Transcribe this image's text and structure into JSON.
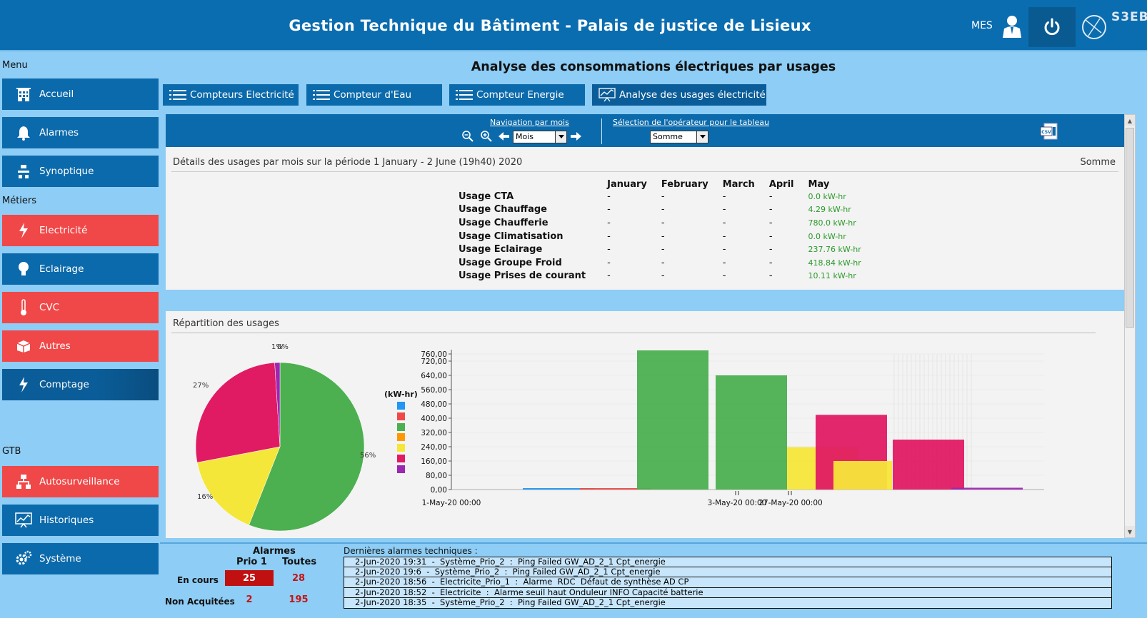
{
  "header": {
    "title": "Gestion Technique du Bâtiment - Palais de justice de Lisieux",
    "mes_label": "MES",
    "logo_text": "S3EB"
  },
  "sidebar": {
    "menu_label": "Menu",
    "metiers_label": "Métiers",
    "gtb_label": "GTB",
    "items": [
      {
        "label": "Accueil",
        "icon": "building-icon",
        "color": "#0b6aab"
      },
      {
        "label": "Alarmes",
        "icon": "bell-icon",
        "color": "#0b6aab"
      },
      {
        "label": "Synoptique",
        "icon": "synoptic-icon",
        "color": "#0b6aab"
      },
      {
        "label": "Electricité",
        "icon": "lightning-icon",
        "color": "#f04848"
      },
      {
        "label": "Eclairage",
        "icon": "bulb-icon",
        "color": "#0b6aab"
      },
      {
        "label": "CVC",
        "icon": "thermometer-icon",
        "color": "#f04848"
      },
      {
        "label": "Autres",
        "icon": "box-icon",
        "color": "#f04848"
      },
      {
        "label": "Comptage",
        "icon": "lightning-icon",
        "color": "#0a5d99"
      },
      {
        "label": "Autosurveillance",
        "icon": "network-icon",
        "color": "#f04848"
      },
      {
        "label": "Historiques",
        "icon": "chart-icon",
        "color": "#0b6aab"
      },
      {
        "label": "Système",
        "icon": "gears-icon",
        "color": "#0b6aab"
      }
    ]
  },
  "main": {
    "page_title": "Analyse des consommations électriques par usages",
    "tabs": [
      {
        "label": "Compteurs Electricité"
      },
      {
        "label": "Compteur d'Eau"
      },
      {
        "label": "Compteur Energie"
      },
      {
        "label": "Analyse des usages électricité"
      }
    ],
    "nav": {
      "month_caption": "Navigation par mois",
      "month_value": "Mois",
      "operator_caption": "Sélection de l'opérateur pour le tableau",
      "operator_value": "Somme",
      "csv_label": "CSV"
    },
    "details": {
      "title": "Détails des usages par mois sur la période 1 January - 2 June (19h40) 2020",
      "operator": "Somme",
      "columns": [
        "January",
        "February",
        "March",
        "April",
        "May"
      ],
      "rows": [
        {
          "name": "Usage CTA",
          "values": [
            "-",
            "-",
            "-",
            "-",
            "0.0 kW-hr"
          ]
        },
        {
          "name": "Usage Chauffage",
          "values": [
            "-",
            "-",
            "-",
            "-",
            "4.29 kW-hr"
          ]
        },
        {
          "name": "Usage Chaufferie",
          "values": [
            "-",
            "-",
            "-",
            "-",
            "780.0 kW-hr"
          ]
        },
        {
          "name": "Usage Climatisation",
          "values": [
            "-",
            "-",
            "-",
            "-",
            "0.0 kW-hr"
          ]
        },
        {
          "name": "Usage Eclairage",
          "values": [
            "-",
            "-",
            "-",
            "-",
            "237.76 kW-hr"
          ]
        },
        {
          "name": "Usage Groupe Froid",
          "values": [
            "-",
            "-",
            "-",
            "-",
            "418.84 kW-hr"
          ]
        },
        {
          "name": "Usage Prises de courant",
          "values": [
            "-",
            "-",
            "-",
            "-",
            "10.11 kW-hr"
          ]
        }
      ]
    },
    "chart_section_title": "Répartition des usages"
  },
  "chart_data": [
    {
      "type": "pie",
      "title": "",
      "slices": [
        {
          "color": "#4caf50",
          "value": 56,
          "label": "56%"
        },
        {
          "color": "#f5e63a",
          "value": 16,
          "label": "16%"
        },
        {
          "color": "#e01b64",
          "value": 27,
          "label": "27%"
        },
        {
          "color": "#9c27b0",
          "value": 1,
          "label": "1%"
        },
        {
          "color": "#f04848",
          "value": 0,
          "label": "0%"
        }
      ]
    },
    {
      "type": "bar",
      "title": "",
      "ylabel": "(kW-hr)",
      "ylim": [
        0,
        760
      ],
      "yticks": [
        "0,00",
        "80,00",
        "160,00",
        "240,00",
        "320,00",
        "400,00",
        "480,00",
        "560,00",
        "640,00",
        "720,00",
        "760,00"
      ],
      "yvalues": [
        0,
        80,
        160,
        240,
        320,
        400,
        480,
        560,
        640,
        720,
        760
      ],
      "xtick_labels": [
        "1-May-20 00:00",
        "3-May-20 00:00",
        "27-May-20 00:00"
      ],
      "legend_colors": [
        "#2196f3",
        "#f04848",
        "#4caf50",
        "#ff9800",
        "#f5e63a",
        "#e01b64",
        "#9c27b0"
      ],
      "series": [
        {
          "color": "#2196f3",
          "values": [
            0
          ]
        },
        {
          "color": "#f04848",
          "values": [
            4.29
          ]
        },
        {
          "color": "#4caf50",
          "values": [
            780.0,
            640.0
          ]
        },
        {
          "color": "#ff9800",
          "values": [
            0
          ]
        },
        {
          "color": "#f5e63a",
          "values": [
            237.76,
            160.0
          ]
        },
        {
          "color": "#e01b64",
          "values": [
            418.84,
            280.0
          ]
        },
        {
          "color": "#9c27b0",
          "values": [
            10.11
          ]
        }
      ]
    }
  ],
  "footer": {
    "alarm_title": "Alarmes",
    "col_prio": "Prio 1",
    "col_all": "Toutes",
    "row_current": "En cours",
    "row_unack": "Non Acquitées",
    "current_prio": "25",
    "current_all": "28",
    "unack_prio": "2",
    "unack_all": "195",
    "last_alarms_title": "Dernières alarmes techniques :",
    "last_alarms": [
      "2-Jun-2020 19:31  -  Système_Prio_2  :  Ping Failed GW_AD_2_1 Cpt_energie",
      "2-Jun-2020 19:6  -  Système_Prio_2  :  Ping Failed GW_AD_2_1 Cpt_energie",
      "2-Jun-2020 18:56  -  Electricite_Prio_1  :  Alarme  RDC  Défaut de synthèse AD CP",
      "2-Jun-2020 18:52  -  Electricite  :  Alarme seuil haut Onduleur INFO Capacité batterie",
      "2-Jun-2020 18:35  -  Système_Prio_2  :  Ping Failed GW_AD_2_1 Cpt_energie"
    ]
  }
}
